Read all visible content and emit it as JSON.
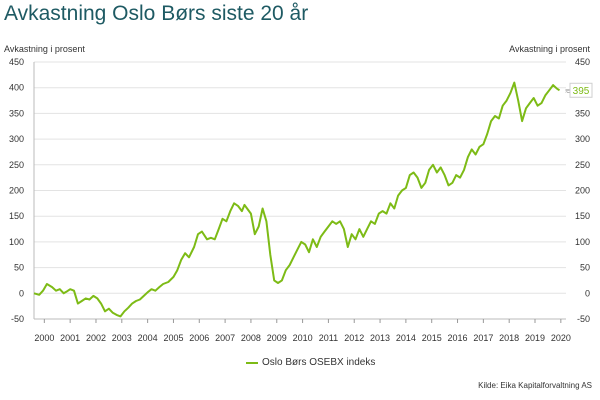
{
  "chart_data": {
    "type": "line",
    "title": "Avkastning Oslo Børs siste 20 år",
    "ylabel": "Avkastning i prosent",
    "ylabel_right": "Avkastning i prosent",
    "ylim": [
      -50,
      450
    ],
    "yticks": [
      -50,
      0,
      50,
      100,
      150,
      200,
      250,
      300,
      350,
      400,
      450
    ],
    "xlim": [
      1999.6,
      2020.2
    ],
    "xticks": [
      2000,
      2001,
      2002,
      2003,
      2004,
      2005,
      2006,
      2007,
      2008,
      2009,
      2010,
      2011,
      2012,
      2013,
      2014,
      2015,
      2016,
      2017,
      2018,
      2019,
      2020
    ],
    "grid": true,
    "legend_position": "bottom-center",
    "end_value_label": "395",
    "line_color": "#7dbb16",
    "series": [
      {
        "name": "Oslo Børs OSEBX indeks",
        "x": [
          1999.6,
          1999.8,
          1999.95,
          2000.1,
          2000.3,
          2000.45,
          2000.6,
          2000.75,
          2000.85,
          2001.0,
          2001.15,
          2001.3,
          2001.45,
          2001.6,
          2001.75,
          2001.9,
          2002.05,
          2002.2,
          2002.35,
          2002.5,
          2002.65,
          2002.8,
          2002.95,
          2003.1,
          2003.25,
          2003.4,
          2003.55,
          2003.7,
          2003.85,
          2004.0,
          2004.15,
          2004.3,
          2004.45,
          2004.6,
          2004.8,
          2005.0,
          2005.15,
          2005.3,
          2005.45,
          2005.6,
          2005.8,
          2005.95,
          2006.1,
          2006.3,
          2006.45,
          2006.6,
          2006.75,
          2006.9,
          2007.05,
          2007.2,
          2007.35,
          2007.5,
          2007.65,
          2007.75,
          2007.85,
          2008.0,
          2008.15,
          2008.3,
          2008.45,
          2008.6,
          2008.75,
          2008.9,
          2009.05,
          2009.2,
          2009.35,
          2009.5,
          2009.65,
          2009.8,
          2009.95,
          2010.1,
          2010.25,
          2010.4,
          2010.55,
          2010.7,
          2010.85,
          2011.0,
          2011.15,
          2011.3,
          2011.45,
          2011.6,
          2011.75,
          2011.9,
          2012.05,
          2012.2,
          2012.35,
          2012.5,
          2012.65,
          2012.8,
          2012.95,
          2013.1,
          2013.25,
          2013.4,
          2013.55,
          2013.7,
          2013.85,
          2014.0,
          2014.15,
          2014.3,
          2014.45,
          2014.6,
          2014.75,
          2014.9,
          2015.05,
          2015.2,
          2015.35,
          2015.5,
          2015.65,
          2015.8,
          2015.95,
          2016.1,
          2016.25,
          2016.4,
          2016.55,
          2016.7,
          2016.85,
          2017.0,
          2017.15,
          2017.3,
          2017.45,
          2017.6,
          2017.75,
          2017.9,
          2018.05,
          2018.2,
          2018.35,
          2018.5,
          2018.65,
          2018.8,
          2018.95,
          2019.1,
          2019.25,
          2019.4,
          2019.55,
          2019.7,
          2019.85,
          2019.95
        ],
        "values": [
          0,
          -3,
          5,
          18,
          12,
          5,
          8,
          0,
          3,
          8,
          5,
          -20,
          -15,
          -10,
          -12,
          -5,
          -10,
          -20,
          -35,
          -30,
          -38,
          -42,
          -45,
          -35,
          -28,
          -20,
          -15,
          -12,
          -5,
          2,
          8,
          5,
          12,
          18,
          22,
          32,
          45,
          65,
          78,
          70,
          90,
          115,
          120,
          105,
          108,
          105,
          125,
          145,
          140,
          160,
          175,
          170,
          160,
          172,
          165,
          155,
          115,
          130,
          165,
          140,
          75,
          25,
          20,
          25,
          45,
          55,
          70,
          85,
          100,
          95,
          80,
          105,
          90,
          110,
          120,
          130,
          140,
          135,
          140,
          125,
          90,
          115,
          105,
          125,
          110,
          125,
          140,
          135,
          155,
          160,
          155,
          175,
          165,
          190,
          200,
          205,
          230,
          235,
          225,
          205,
          215,
          240,
          250,
          235,
          245,
          230,
          210,
          215,
          230,
          225,
          240,
          265,
          280,
          270,
          285,
          290,
          310,
          335,
          345,
          340,
          365,
          375,
          390,
          410,
          375,
          335,
          360,
          370,
          380,
          365,
          370,
          385,
          395,
          405,
          398,
          395
        ]
      }
    ]
  },
  "legend": {
    "label": "Oslo Børs OSEBX indeks"
  },
  "source": "Kilde: Eika Kapitalforvaltning AS"
}
